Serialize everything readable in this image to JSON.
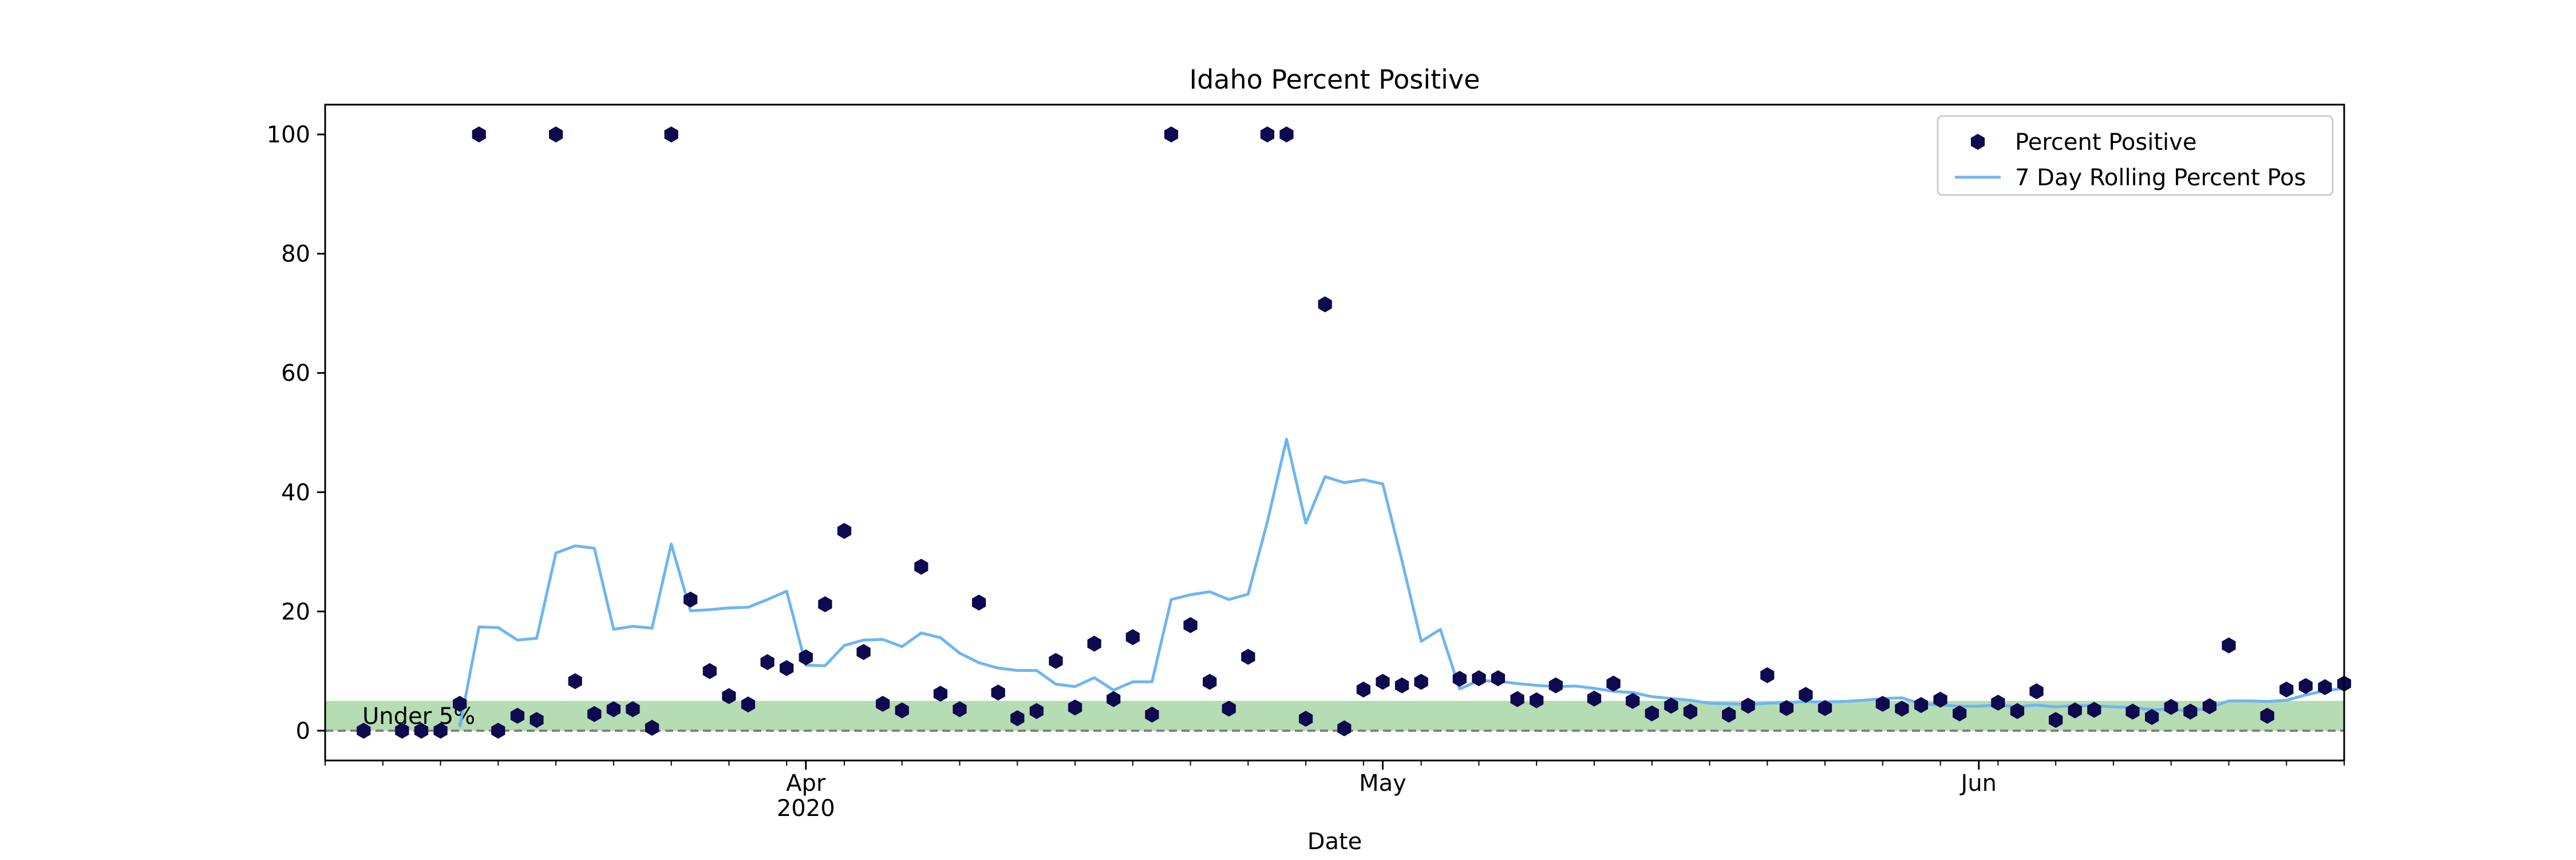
{
  "chart_data": {
    "type": "scatter",
    "title": "Idaho Percent Positive",
    "xlabel": "Date",
    "ylabel": "",
    "xlim": [
      "2020-03-07",
      "2020-06-20"
    ],
    "ylim": [
      -5,
      105
    ],
    "yticks": [
      0,
      20,
      40,
      60,
      80,
      100
    ],
    "x_major_ticks": [
      {
        "date": "2020-04-01",
        "label": "Apr",
        "sublabel": "2020"
      },
      {
        "date": "2020-05-01",
        "label": "May",
        "sublabel": ""
      },
      {
        "date": "2020-06-01",
        "label": "Jun",
        "sublabel": ""
      }
    ],
    "x_minor_tick_interval_days": 3,
    "band": {
      "y0": 0,
      "y1": 5,
      "label": "Under 5%",
      "color": "#b5dcb2"
    },
    "zero_line": {
      "y": 0,
      "style": "dashed",
      "color": "#808080"
    },
    "legend": {
      "placement": "top-right"
    },
    "series": [
      {
        "name": "Percent Positive",
        "kind": "points",
        "marker": "hexagon",
        "color": "#0d0a4f",
        "points": [
          [
            "2020-03-09",
            0
          ],
          [
            "2020-03-11",
            0
          ],
          [
            "2020-03-12",
            0
          ],
          [
            "2020-03-13",
            0
          ],
          [
            "2020-03-14",
            4.5
          ],
          [
            "2020-03-15",
            100
          ],
          [
            "2020-03-16",
            0
          ],
          [
            "2020-03-17",
            2.5
          ],
          [
            "2020-03-18",
            1.8
          ],
          [
            "2020-03-19",
            100
          ],
          [
            "2020-03-20",
            8.3
          ],
          [
            "2020-03-21",
            2.8
          ],
          [
            "2020-03-22",
            3.6
          ],
          [
            "2020-03-23",
            3.6
          ],
          [
            "2020-03-24",
            0.5
          ],
          [
            "2020-03-25",
            100
          ],
          [
            "2020-03-26",
            22
          ],
          [
            "2020-03-27",
            10
          ],
          [
            "2020-03-28",
            5.8
          ],
          [
            "2020-03-29",
            4.4
          ],
          [
            "2020-03-30",
            11.5
          ],
          [
            "2020-03-31",
            10.5
          ],
          [
            "2020-04-01",
            12.3
          ],
          [
            "2020-04-02",
            21.2
          ],
          [
            "2020-04-03",
            33.5
          ],
          [
            "2020-04-04",
            13.2
          ],
          [
            "2020-04-05",
            4.5
          ],
          [
            "2020-04-06",
            3.4
          ],
          [
            "2020-04-07",
            27.5
          ],
          [
            "2020-04-08",
            6.2
          ],
          [
            "2020-04-09",
            3.6
          ],
          [
            "2020-04-10",
            21.5
          ],
          [
            "2020-04-11",
            6.4
          ],
          [
            "2020-04-12",
            2.1
          ],
          [
            "2020-04-13",
            3.3
          ],
          [
            "2020-04-14",
            11.7
          ],
          [
            "2020-04-15",
            3.9
          ],
          [
            "2020-04-16",
            14.6
          ],
          [
            "2020-04-17",
            5.3
          ],
          [
            "2020-04-18",
            15.7
          ],
          [
            "2020-04-19",
            2.7
          ],
          [
            "2020-04-20",
            100
          ],
          [
            "2020-04-21",
            17.7
          ],
          [
            "2020-04-22",
            8.2
          ],
          [
            "2020-04-23",
            3.7
          ],
          [
            "2020-04-24",
            12.4
          ],
          [
            "2020-04-25",
            100
          ],
          [
            "2020-04-26",
            100
          ],
          [
            "2020-04-27",
            2.0
          ],
          [
            "2020-04-28",
            71.5
          ],
          [
            "2020-04-29",
            0.4
          ],
          [
            "2020-04-30",
            6.9
          ],
          [
            "2020-05-01",
            8.2
          ],
          [
            "2020-05-02",
            7.6
          ],
          [
            "2020-05-03",
            8.2
          ],
          [
            "2020-05-05",
            8.7
          ],
          [
            "2020-05-06",
            8.8
          ],
          [
            "2020-05-07",
            8.8
          ],
          [
            "2020-05-08",
            5.3
          ],
          [
            "2020-05-09",
            5.1
          ],
          [
            "2020-05-10",
            7.6
          ],
          [
            "2020-05-12",
            5.4
          ],
          [
            "2020-05-13",
            7.9
          ],
          [
            "2020-05-14",
            5.0
          ],
          [
            "2020-05-15",
            2.9
          ],
          [
            "2020-05-16",
            4.2
          ],
          [
            "2020-05-17",
            3.2
          ],
          [
            "2020-05-19",
            2.7
          ],
          [
            "2020-05-20",
            4.2
          ],
          [
            "2020-05-21",
            9.3
          ],
          [
            "2020-05-22",
            3.8
          ],
          [
            "2020-05-23",
            6.0
          ],
          [
            "2020-05-24",
            3.8
          ],
          [
            "2020-05-27",
            4.5
          ],
          [
            "2020-05-28",
            3.7
          ],
          [
            "2020-05-29",
            4.3
          ],
          [
            "2020-05-30",
            5.2
          ],
          [
            "2020-05-31",
            2.9
          ],
          [
            "2020-06-02",
            4.7
          ],
          [
            "2020-06-03",
            3.3
          ],
          [
            "2020-06-04",
            6.6
          ],
          [
            "2020-06-05",
            1.8
          ],
          [
            "2020-06-06",
            3.4
          ],
          [
            "2020-06-07",
            3.5
          ],
          [
            "2020-06-09",
            3.2
          ],
          [
            "2020-06-10",
            2.3
          ],
          [
            "2020-06-11",
            4.0
          ],
          [
            "2020-06-12",
            3.2
          ],
          [
            "2020-06-13",
            4.1
          ],
          [
            "2020-06-14",
            14.3
          ],
          [
            "2020-06-16",
            2.5
          ],
          [
            "2020-06-17",
            6.9
          ],
          [
            "2020-06-18",
            7.5
          ],
          [
            "2020-06-19",
            7.3
          ],
          [
            "2020-06-20",
            7.9
          ]
        ]
      },
      {
        "name": "7 Day Rolling Percent Pos",
        "kind": "line",
        "color": "#6eb5f2",
        "points": [
          [
            "2020-03-14",
            0.6
          ],
          [
            "2020-03-15",
            17.4
          ],
          [
            "2020-03-16",
            17.3
          ],
          [
            "2020-03-17",
            15.2
          ],
          [
            "2020-03-18",
            15.5
          ],
          [
            "2020-03-19",
            29.8
          ],
          [
            "2020-03-20",
            31.0
          ],
          [
            "2020-03-21",
            30.6
          ],
          [
            "2020-03-22",
            17.0
          ],
          [
            "2020-03-23",
            17.5
          ],
          [
            "2020-03-24",
            17.2
          ],
          [
            "2020-03-25",
            31.3
          ],
          [
            "2020-03-26",
            20.1
          ],
          [
            "2020-03-27",
            20.3
          ],
          [
            "2020-03-28",
            20.6
          ],
          [
            "2020-03-29",
            20.7
          ],
          [
            "2020-03-30",
            22.0
          ],
          [
            "2020-03-31",
            23.4
          ],
          [
            "2020-04-01",
            11.0
          ],
          [
            "2020-04-02",
            10.9
          ],
          [
            "2020-04-03",
            14.3
          ],
          [
            "2020-04-04",
            15.2
          ],
          [
            "2020-04-05",
            15.3
          ],
          [
            "2020-04-06",
            14.1
          ],
          [
            "2020-04-07",
            16.4
          ],
          [
            "2020-04-08",
            15.6
          ],
          [
            "2020-04-09",
            13.0
          ],
          [
            "2020-04-10",
            11.4
          ],
          [
            "2020-04-11",
            10.5
          ],
          [
            "2020-04-12",
            10.1
          ],
          [
            "2020-04-13",
            10.1
          ],
          [
            "2020-04-14",
            7.8
          ],
          [
            "2020-04-15",
            7.4
          ],
          [
            "2020-04-16",
            8.9
          ],
          [
            "2020-04-17",
            6.8
          ],
          [
            "2020-04-18",
            8.2
          ],
          [
            "2020-04-19",
            8.2
          ],
          [
            "2020-04-20",
            22.0
          ],
          [
            "2020-04-21",
            22.8
          ],
          [
            "2020-04-22",
            23.3
          ],
          [
            "2020-04-23",
            22.0
          ],
          [
            "2020-04-24",
            22.9
          ],
          [
            "2020-04-25",
            35.0
          ],
          [
            "2020-04-26",
            48.9
          ],
          [
            "2020-04-27",
            34.8
          ],
          [
            "2020-04-28",
            42.6
          ],
          [
            "2020-04-29",
            41.6
          ],
          [
            "2020-04-30",
            42.1
          ],
          [
            "2020-05-01",
            41.4
          ],
          [
            "2020-05-02",
            28.5
          ],
          [
            "2020-05-03",
            15.0
          ],
          [
            "2020-05-04",
            17.0
          ],
          [
            "2020-05-05",
            7.0
          ],
          [
            "2020-05-06",
            8.4
          ],
          [
            "2020-05-07",
            8.3
          ],
          [
            "2020-05-08",
            7.9
          ],
          [
            "2020-05-09",
            7.6
          ],
          [
            "2020-05-10",
            7.4
          ],
          [
            "2020-05-11",
            7.5
          ],
          [
            "2020-05-12",
            7.1
          ],
          [
            "2020-05-13",
            6.6
          ],
          [
            "2020-05-14",
            6.4
          ],
          [
            "2020-05-15",
            5.7
          ],
          [
            "2020-05-16",
            5.4
          ],
          [
            "2020-05-17",
            5.1
          ],
          [
            "2020-05-18",
            4.6
          ],
          [
            "2020-05-19",
            4.5
          ],
          [
            "2020-05-20",
            4.4
          ],
          [
            "2020-05-21",
            4.6
          ],
          [
            "2020-05-22",
            4.7
          ],
          [
            "2020-05-23",
            4.9
          ],
          [
            "2020-05-24",
            4.8
          ],
          [
            "2020-05-25",
            4.9
          ],
          [
            "2020-05-26",
            5.1
          ],
          [
            "2020-05-27",
            5.4
          ],
          [
            "2020-05-28",
            5.5
          ],
          [
            "2020-05-29",
            4.5
          ],
          [
            "2020-05-30",
            4.3
          ],
          [
            "2020-05-31",
            4.1
          ],
          [
            "2020-06-01",
            4.1
          ],
          [
            "2020-06-02",
            4.3
          ],
          [
            "2020-06-03",
            4.0
          ],
          [
            "2020-06-04",
            4.3
          ],
          [
            "2020-06-05",
            4.0
          ],
          [
            "2020-06-06",
            4.2
          ],
          [
            "2020-06-07",
            4.2
          ],
          [
            "2020-06-08",
            4.0
          ],
          [
            "2020-06-09",
            3.9
          ],
          [
            "2020-06-10",
            3.5
          ],
          [
            "2020-06-11",
            3.6
          ],
          [
            "2020-06-12",
            3.3
          ],
          [
            "2020-06-13",
            3.8
          ],
          [
            "2020-06-14",
            5.0
          ],
          [
            "2020-06-15",
            5.0
          ],
          [
            "2020-06-16",
            4.9
          ],
          [
            "2020-06-17",
            5.1
          ],
          [
            "2020-06-18",
            6.0
          ],
          [
            "2020-06-19",
            6.7
          ],
          [
            "2020-06-20",
            7.1
          ]
        ]
      }
    ]
  }
}
